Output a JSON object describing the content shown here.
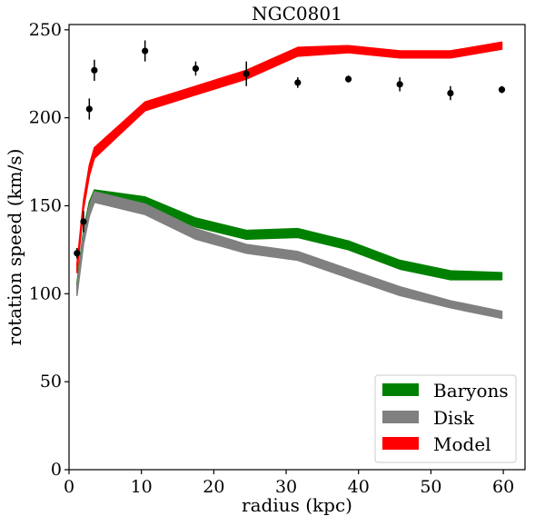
{
  "chart_data": {
    "type": "line",
    "title": "NGC0801",
    "xlabel": "radius (kpc)",
    "ylabel": "rotation speed (km/s)",
    "xlim": [
      0,
      63
    ],
    "ylim": [
      0,
      253
    ],
    "xticks": [
      0,
      10,
      20,
      30,
      40,
      50,
      60
    ],
    "yticks": [
      0,
      50,
      100,
      150,
      200,
      250
    ],
    "grid": false,
    "legend_position": "lower-right",
    "series": [
      {
        "name": "Baryons",
        "kind": "band",
        "color": "#008000",
        "x": [
          1.1,
          2.0,
          2.8,
          3.5,
          10.5,
          17.5,
          24.5,
          31.6,
          38.6,
          45.7,
          52.7,
          59.8
        ],
        "lower": [
          101,
          130,
          145,
          154,
          149,
          138,
          131,
          132,
          125,
          114,
          108,
          108
        ],
        "upper": [
          106,
          136,
          152,
          159,
          155,
          143,
          136,
          137,
          130,
          119,
          113,
          112
        ]
      },
      {
        "name": "Disk",
        "kind": "band",
        "color": "#808080",
        "x": [
          1.1,
          2.0,
          2.8,
          3.5,
          10.5,
          17.5,
          24.5,
          31.6,
          38.6,
          45.7,
          52.7,
          59.8
        ],
        "lower": [
          99,
          128,
          144,
          152,
          145,
          131,
          123,
          119,
          109,
          99,
          92,
          86
        ],
        "upper": [
          104,
          134,
          150,
          158,
          151,
          137,
          128,
          124,
          114,
          104,
          96,
          90
        ]
      },
      {
        "name": "Model",
        "kind": "band",
        "color": "#ff0000",
        "x": [
          1.1,
          2.0,
          2.8,
          3.5,
          10.5,
          17.5,
          24.5,
          31.6,
          38.6,
          45.7,
          52.7,
          59.8
        ],
        "lower": [
          112,
          148,
          167,
          177,
          204,
          213,
          222,
          235,
          237,
          234,
          234,
          239
        ],
        "upper": [
          117,
          153,
          173,
          183,
          209,
          218,
          227,
          240,
          241,
          238,
          238,
          243
        ]
      },
      {
        "name": "Observed",
        "kind": "errorbar",
        "color": "#000000",
        "x": [
          1.1,
          2.0,
          2.8,
          3.5,
          10.5,
          17.5,
          24.5,
          31.6,
          38.6,
          45.7,
          52.7,
          59.8
        ],
        "y": [
          123,
          141,
          205,
          227,
          238,
          228,
          225,
          220,
          222,
          219,
          214,
          216
        ],
        "yerr": [
          3,
          6,
          6,
          6,
          6,
          4,
          7,
          3,
          2,
          4,
          4,
          2
        ]
      }
    ],
    "legend": [
      {
        "label": "Baryons",
        "color": "#008000"
      },
      {
        "label": "Disk",
        "color": "#808080"
      },
      {
        "label": "Model",
        "color": "#ff0000"
      }
    ]
  }
}
